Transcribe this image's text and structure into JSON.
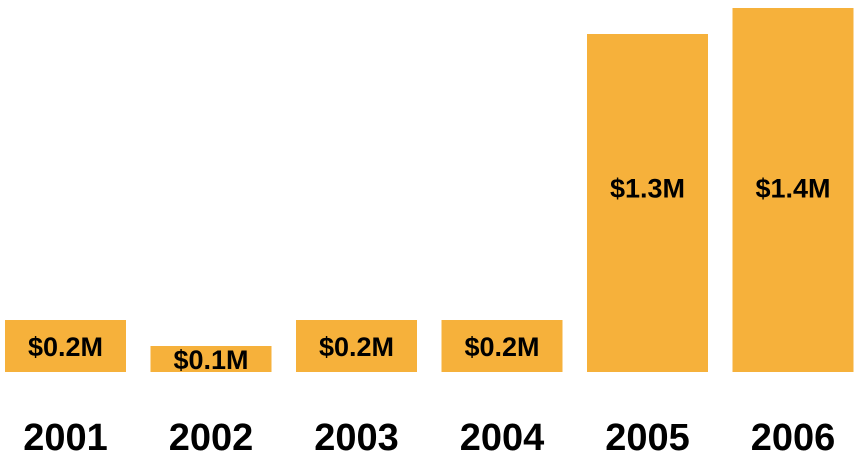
{
  "chart_data": {
    "type": "bar",
    "categories": [
      "2001",
      "2002",
      "2003",
      "2004",
      "2005",
      "2006"
    ],
    "values": [
      0.2,
      0.1,
      0.2,
      0.2,
      1.3,
      1.4
    ],
    "data_labels": [
      "$0.2M",
      "$0.1M",
      "$0.2M",
      "$0.2M",
      "$1.3M",
      "$1.4M"
    ],
    "title": "",
    "xlabel": "",
    "ylabel": "",
    "ylim": [
      0,
      1.4
    ],
    "grid": false,
    "legend": "none",
    "bar_color": "#f6b13b"
  }
}
